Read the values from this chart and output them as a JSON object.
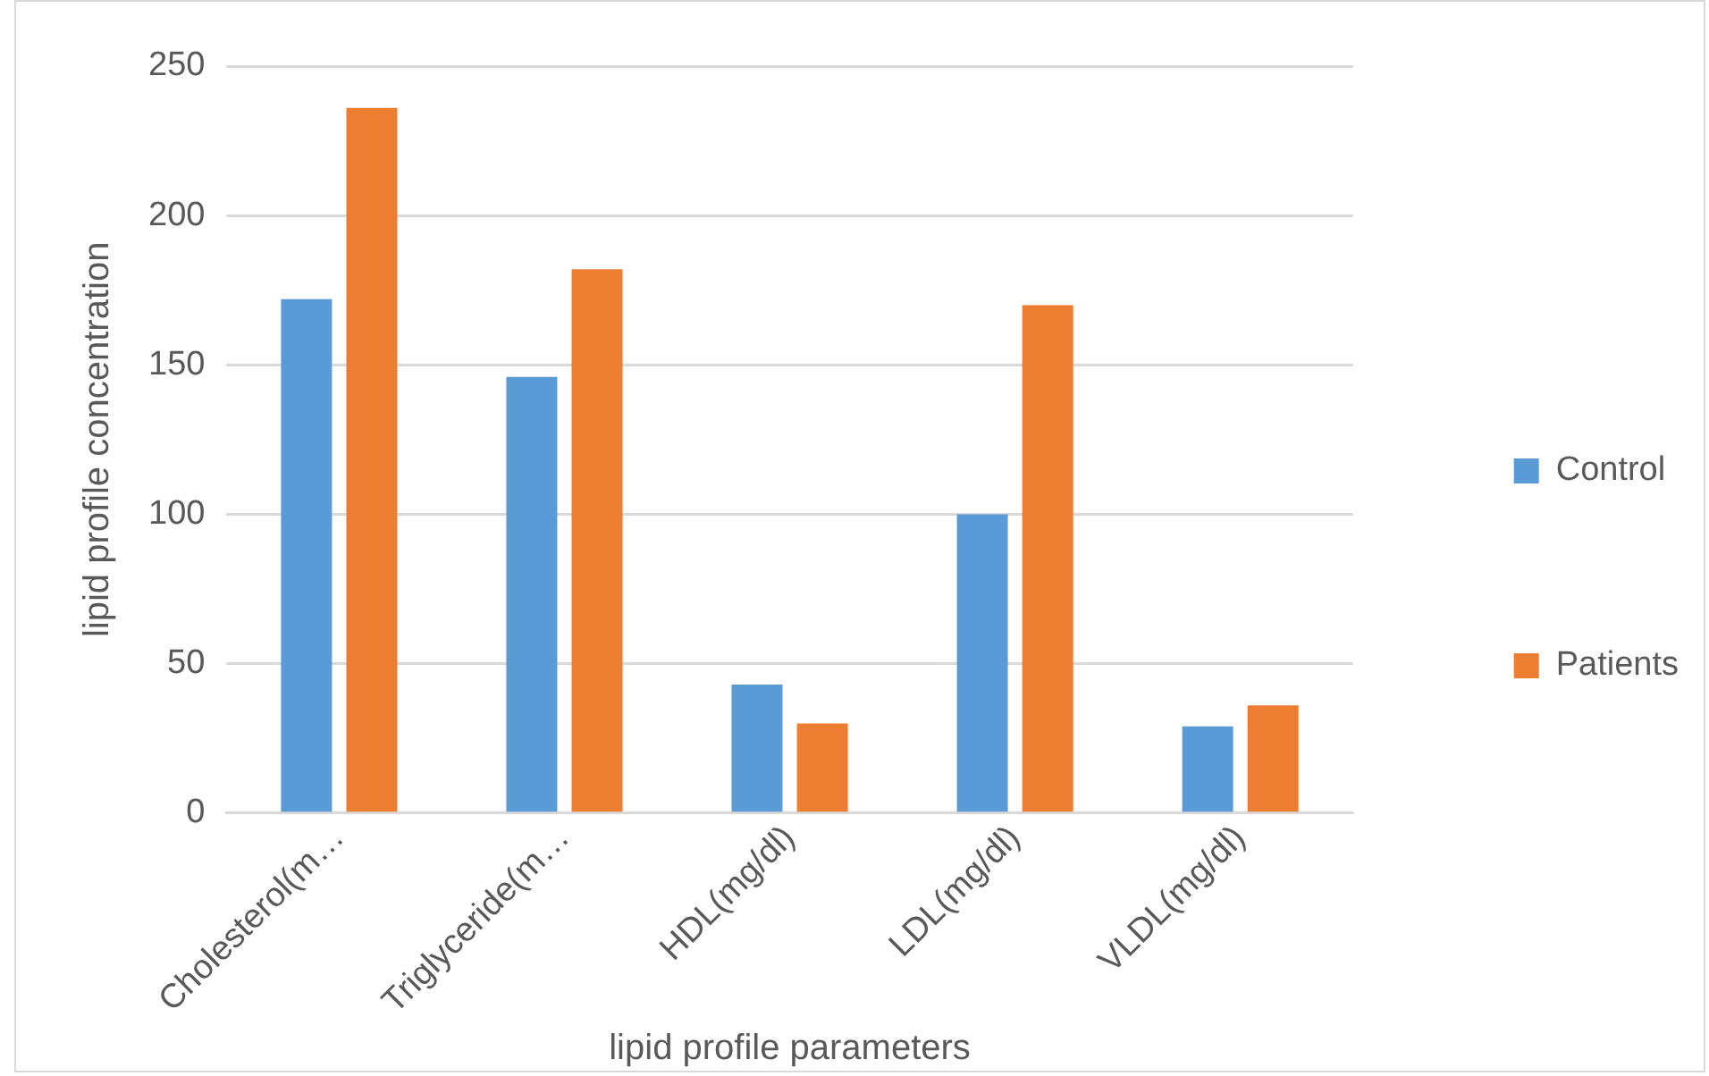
{
  "chart_data": {
    "type": "bar",
    "xlabel": "lipid profile parameters",
    "ylabel": "lipid profile concentration",
    "categories": [
      "Cholesterol(m…",
      "Triglyceride(m…",
      "HDL(mg/dl)",
      "LDL(mg/dl)",
      "VLDL(mg/dl)"
    ],
    "series": [
      {
        "name": "Control",
        "color": "#5b9bd5",
        "values": [
          172,
          146,
          43,
          100,
          29
        ]
      },
      {
        "name": "Patients",
        "color": "#ed7d31",
        "values": [
          236,
          182,
          30,
          170,
          36
        ]
      }
    ],
    "ylim": [
      0,
      250
    ],
    "yticks": [
      0,
      50,
      100,
      150,
      200,
      250
    ],
    "grid": "y",
    "legend": "right"
  }
}
